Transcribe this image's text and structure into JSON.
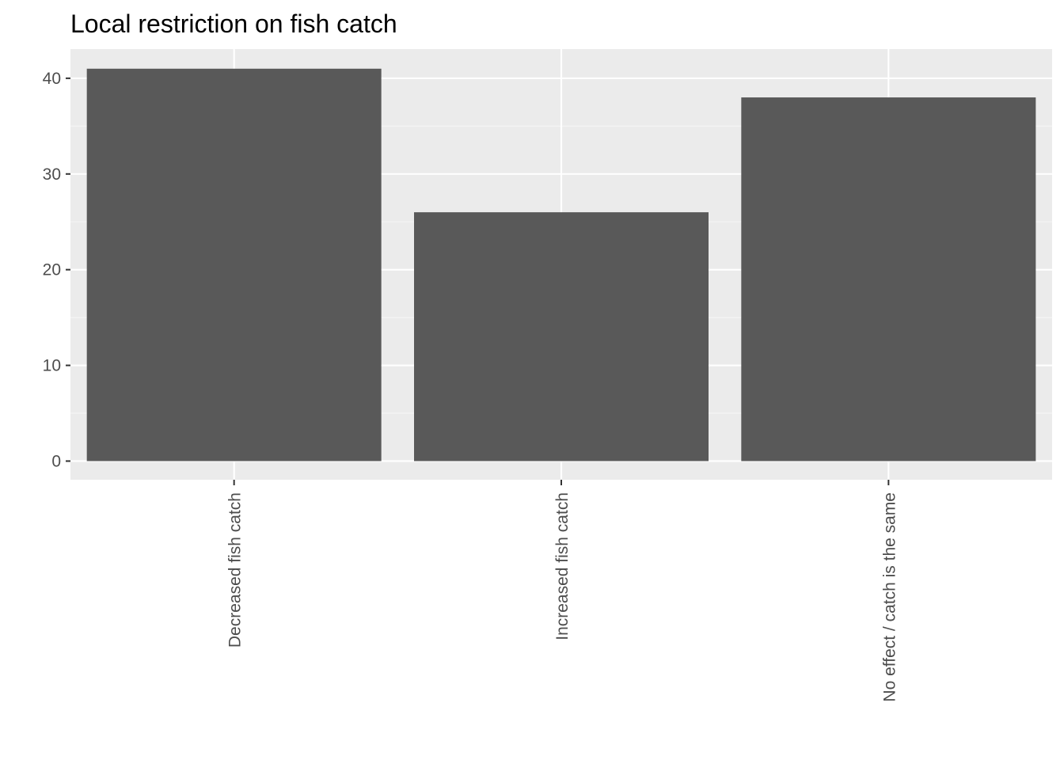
{
  "chart_data": {
    "type": "bar",
    "title": "Local restriction on fish catch",
    "xlabel": "",
    "ylabel": "",
    "categories": [
      "Decreased fish catch",
      "Increased fish catch",
      "No effect / catch is the same"
    ],
    "values": [
      41,
      26,
      38
    ],
    "ylim": [
      -1.95,
      43.05
    ],
    "yticks": [
      0,
      10,
      20,
      30,
      40
    ],
    "grid": true,
    "legend": "none",
    "colors": {
      "panel_background": "#ebebeb",
      "grid_major": "#ffffff",
      "grid_minor": "#f5f5f5",
      "bar_fill": "#595959",
      "tick_mark": "#333333",
      "tick_text": "#4d4d4d",
      "title_text": "#000000"
    }
  }
}
